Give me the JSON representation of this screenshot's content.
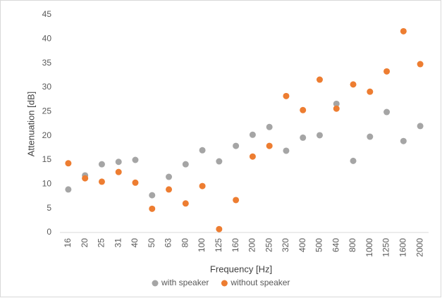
{
  "chart_data": {
    "type": "scatter",
    "x_label": "Frequency [Hz]",
    "y_label": "Attenuation [dB]",
    "categories": [
      "16",
      "20",
      "25",
      "31",
      "40",
      "50",
      "63",
      "80",
      "100",
      "125",
      "160",
      "200",
      "250",
      "320",
      "400",
      "500",
      "640",
      "800",
      "1000",
      "1250",
      "1600",
      "2000"
    ],
    "series": [
      {
        "name": "with speaker",
        "color": "#a5a5a5",
        "values": [
          8.9,
          11.8,
          14.1,
          14.6,
          15.0,
          7.7,
          11.5,
          14.1,
          17.0,
          14.7,
          17.9,
          20.2,
          21.8,
          16.9,
          19.6,
          20.1,
          26.6,
          14.8,
          19.8,
          24.9,
          18.9,
          22.0
        ]
      },
      {
        "name": "without speaker",
        "color": "#ed7d31",
        "values": [
          14.3,
          11.2,
          10.5,
          12.5,
          10.3,
          4.9,
          8.9,
          6.0,
          9.6,
          0.7,
          6.7,
          15.7,
          17.9,
          28.2,
          25.3,
          31.6,
          25.6,
          30.6,
          29.1,
          33.3,
          41.6,
          34.8
        ]
      }
    ],
    "ylim": [
      0,
      45
    ],
    "yticks": [
      0,
      5,
      10,
      15,
      20,
      25,
      30,
      35,
      40,
      45
    ],
    "legend": "bottom"
  }
}
